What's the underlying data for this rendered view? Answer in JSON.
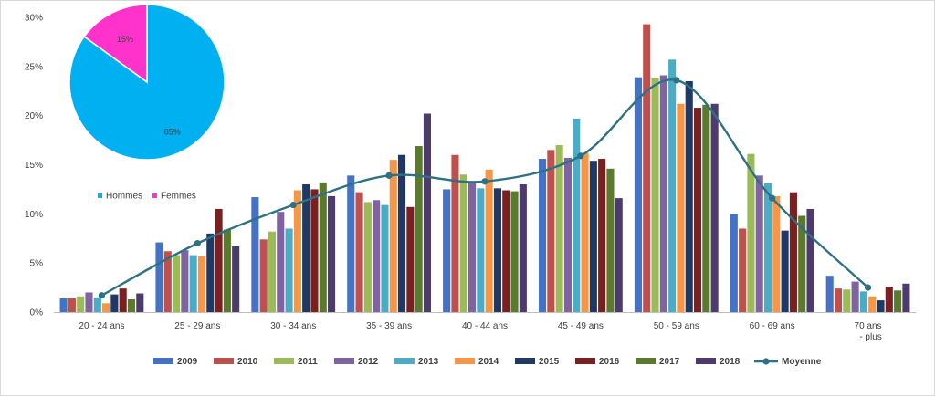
{
  "chart_data": [
    {
      "type": "bar",
      "title": "",
      "xlabel": "",
      "ylabel": "",
      "ylim": [
        0,
        30
      ],
      "yticks": [
        "0%",
        "5%",
        "10%",
        "15%",
        "20%",
        "25%",
        "30%"
      ],
      "grid": false,
      "legend_position": "bottom",
      "categories": [
        [
          "20 - 24 ans"
        ],
        [
          "25 - 29 ans"
        ],
        [
          "30 - 34 ans"
        ],
        [
          "35 - 39 ans"
        ],
        [
          "40 - 44 ans"
        ],
        [
          "45 - 49 ans"
        ],
        [
          "50 - 59 ans"
        ],
        [
          "60 - 69 ans"
        ],
        [
          "70 ans",
          "- plus"
        ]
      ],
      "series": [
        {
          "name": "2009",
          "color": "#4472c4",
          "values": [
            1.4,
            7.1,
            11.7,
            13.9,
            12.5,
            15.6,
            23.9,
            10.0,
            3.7
          ]
        },
        {
          "name": "2010",
          "color": "#c0504d",
          "values": [
            1.4,
            6.2,
            7.4,
            12.2,
            16.0,
            16.5,
            29.3,
            8.5,
            2.4
          ]
        },
        {
          "name": "2011",
          "color": "#9bbb59",
          "values": [
            1.6,
            5.8,
            8.2,
            11.2,
            14.0,
            17.0,
            23.8,
            16.1,
            2.3
          ]
        },
        {
          "name": "2012",
          "color": "#8064a2",
          "values": [
            2.0,
            6.3,
            10.2,
            11.4,
            13.3,
            15.7,
            24.1,
            13.9,
            3.1
          ]
        },
        {
          "name": "2013",
          "color": "#4bacc6",
          "values": [
            1.5,
            5.8,
            8.5,
            10.9,
            12.6,
            19.7,
            25.7,
            13.1,
            2.1
          ]
        },
        {
          "name": "2014",
          "color": "#f79646",
          "values": [
            0.9,
            5.7,
            12.4,
            15.5,
            14.5,
            16.2,
            21.2,
            11.8,
            1.6
          ]
        },
        {
          "name": "2015",
          "color": "#1f3864",
          "values": [
            1.8,
            8.0,
            13.0,
            16.0,
            12.6,
            15.4,
            23.5,
            8.3,
            1.2
          ]
        },
        {
          "name": "2016",
          "color": "#7b2020",
          "values": [
            2.4,
            10.5,
            12.5,
            10.7,
            12.4,
            15.6,
            20.8,
            12.2,
            2.6
          ]
        },
        {
          "name": "2017",
          "color": "#5a7a2d",
          "values": [
            1.3,
            8.4,
            13.2,
            16.9,
            12.3,
            14.6,
            21.1,
            9.8,
            2.2
          ]
        },
        {
          "name": "2018",
          "color": "#4e3b6e",
          "values": [
            1.9,
            6.7,
            11.8,
            20.2,
            13.0,
            11.6,
            21.2,
            10.5,
            2.9
          ]
        }
      ],
      "line_series": {
        "name": "Moyenne",
        "color": "#2e7184",
        "values": [
          1.7,
          7.0,
          10.9,
          13.9,
          13.3,
          15.9,
          23.6,
          11.6,
          2.5
        ]
      }
    },
    {
      "type": "pie",
      "legend_position": "bottom",
      "slices": [
        {
          "name": "Hommes",
          "value": 85,
          "label": "85%",
          "color": "#00b0f0"
        },
        {
          "name": "Femmes",
          "value": 15,
          "label": "15%",
          "color": "#ff33cc"
        }
      ]
    }
  ]
}
